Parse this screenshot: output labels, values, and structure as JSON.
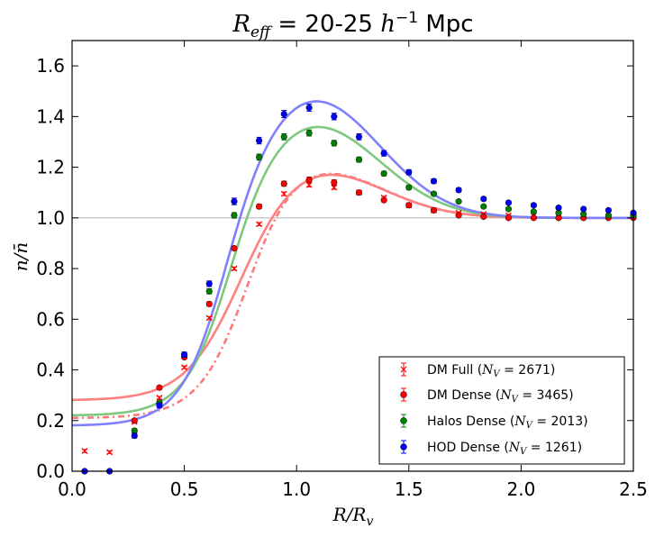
{
  "chart_data": {
    "type": "scatter",
    "title": "R_eff = 20-25 h^-1 Mpc",
    "title_parts": {
      "sym": "R",
      "sub": "eff",
      "mid": " = 20-25 ",
      "h": "h",
      "sup": "−1",
      "unit": " Mpc"
    },
    "xlabel": "R/R_v",
    "xlabel_parts": {
      "a": "R/R",
      "sub": "v"
    },
    "ylabel": "n/n̄",
    "xlim": [
      0.0,
      2.5
    ],
    "ylim": [
      0.0,
      1.7
    ],
    "xticks": [
      0.0,
      0.5,
      1.0,
      1.5,
      2.0,
      2.5
    ],
    "xtick_labels": [
      "0.0",
      "0.5",
      "1.0",
      "1.5",
      "2.0",
      "2.5"
    ],
    "yticks": [
      0.0,
      0.2,
      0.4,
      0.6,
      0.8,
      1.0,
      1.2,
      1.4,
      1.6
    ],
    "ytick_labels": [
      "0.0",
      "0.2",
      "0.4",
      "0.6",
      "0.8",
      "1.0",
      "1.2",
      "1.4",
      "1.6"
    ],
    "reference_line": 1.0,
    "legend_position": "lower-right",
    "series": [
      {
        "name": "DM Full (N_V = 2671)",
        "legend_parts": {
          "pre": "DM Full (",
          "n": "N",
          "sub": "V",
          "post": " = 2671)"
        },
        "color": "#ff0000",
        "marker": "x",
        "x": [
          0.056,
          0.167,
          0.278,
          0.389,
          0.5,
          0.611,
          0.722,
          0.833,
          0.944,
          1.056,
          1.167,
          1.278,
          1.389,
          1.5,
          1.611,
          1.722,
          1.833,
          1.944,
          2.056,
          2.167,
          2.278,
          2.389,
          2.5
        ],
        "y": [
          0.08,
          0.075,
          0.195,
          0.29,
          0.41,
          0.605,
          0.8,
          0.975,
          1.095,
          1.13,
          1.12,
          1.1,
          1.08,
          1.05,
          1.03,
          1.02,
          1.015,
          1.01,
          1.01,
          1.005,
          1.005,
          1.005,
          1.005
        ],
        "err": [
          0.006,
          0.005,
          0.005,
          0.005,
          0.005,
          0.005,
          0.006,
          0.006,
          0.007,
          0.008,
          0.007,
          0.006,
          0.005,
          0.005,
          0.005,
          0.004,
          0.004,
          0.004,
          0.004,
          0.004,
          0.004,
          0.004,
          0.004
        ],
        "fit_color": "#ff7777",
        "fit_style": "dashdot",
        "fit": {
          "c": 0.78,
          "k": 10.0,
          "base": 0.21,
          "amp": 0.2,
          "mu": 1.07,
          "sig": 0.3
        }
      },
      {
        "name": "DM Dense (N_V = 3465)",
        "legend_parts": {
          "pre": "DM Dense (",
          "n": "N",
          "sub": "V",
          "post": " = 3465)"
        },
        "color": "#ff0000",
        "marker": "o",
        "x": [
          0.056,
          0.167,
          0.278,
          0.389,
          0.5,
          0.611,
          0.722,
          0.833,
          0.944,
          1.056,
          1.167,
          1.278,
          1.389,
          1.5,
          1.611,
          1.722,
          1.833,
          1.944,
          2.056,
          2.167,
          2.278,
          2.389,
          2.5
        ],
        "y": [
          0.0,
          0.0,
          0.2,
          0.33,
          0.45,
          0.66,
          0.88,
          1.045,
          1.135,
          1.15,
          1.14,
          1.1,
          1.07,
          1.05,
          1.03,
          1.01,
          1.005,
          1.0,
          1.0,
          1.0,
          1.0,
          1.0,
          1.0
        ],
        "err": [
          0.004,
          0.004,
          0.007,
          0.007,
          0.007,
          0.008,
          0.008,
          0.009,
          0.01,
          0.011,
          0.01,
          0.008,
          0.007,
          0.006,
          0.005,
          0.005,
          0.005,
          0.005,
          0.005,
          0.005,
          0.004,
          0.004,
          0.004
        ],
        "fit_color": "#ff8080",
        "fit_style": "solid",
        "fit": {
          "c": 0.75,
          "k": 8.5,
          "base": 0.28,
          "amp": 0.2,
          "mu": 1.07,
          "sig": 0.3
        }
      },
      {
        "name": "Halos Dense (N_V = 2013)",
        "legend_parts": {
          "pre": "Halos Dense (",
          "n": "N",
          "sub": "V",
          "post": " = 2013)"
        },
        "color": "#008000",
        "marker": "o",
        "x": [
          0.056,
          0.167,
          0.278,
          0.389,
          0.5,
          0.611,
          0.722,
          0.833,
          0.944,
          1.056,
          1.167,
          1.278,
          1.389,
          1.5,
          1.611,
          1.722,
          1.833,
          1.944,
          2.056,
          2.167,
          2.278,
          2.389,
          2.5
        ],
        "y": [
          0.0,
          0.0,
          0.16,
          0.27,
          0.46,
          0.71,
          1.01,
          1.24,
          1.32,
          1.335,
          1.295,
          1.23,
          1.175,
          1.12,
          1.095,
          1.065,
          1.045,
          1.035,
          1.025,
          1.02,
          1.015,
          1.01,
          1.01
        ],
        "err": [
          0.004,
          0.004,
          0.008,
          0.008,
          0.009,
          0.01,
          0.011,
          0.012,
          0.012,
          0.012,
          0.011,
          0.01,
          0.009,
          0.008,
          0.007,
          0.006,
          0.006,
          0.006,
          0.005,
          0.005,
          0.005,
          0.005,
          0.005
        ],
        "fit_color": "#7fc97f",
        "fit_style": "solid",
        "fit": {
          "c": 0.7,
          "k": 11.0,
          "base": 0.22,
          "amp": 0.37,
          "mu": 1.07,
          "sig": 0.3
        }
      },
      {
        "name": "HOD Dense (N_V = 1261)",
        "legend_parts": {
          "pre": "HOD Dense (",
          "n": "N",
          "sub": "V",
          "post": " = 1261)"
        },
        "color": "#0000ff",
        "marker": "o",
        "x": [
          0.056,
          0.167,
          0.278,
          0.389,
          0.5,
          0.611,
          0.722,
          0.833,
          0.944,
          1.056,
          1.167,
          1.278,
          1.389,
          1.5,
          1.611,
          1.722,
          1.833,
          1.944,
          2.056,
          2.167,
          2.278,
          2.389,
          2.5
        ],
        "y": [
          0.0,
          0.0,
          0.14,
          0.26,
          0.46,
          0.74,
          1.065,
          1.305,
          1.41,
          1.435,
          1.4,
          1.32,
          1.255,
          1.18,
          1.145,
          1.11,
          1.075,
          1.06,
          1.05,
          1.04,
          1.035,
          1.03,
          1.02
        ],
        "err": [
          0.004,
          0.004,
          0.009,
          0.009,
          0.01,
          0.011,
          0.013,
          0.013,
          0.014,
          0.014,
          0.013,
          0.012,
          0.011,
          0.01,
          0.009,
          0.008,
          0.008,
          0.007,
          0.007,
          0.007,
          0.006,
          0.006,
          0.006
        ],
        "fit_color": "#8080ff",
        "fit_style": "solid",
        "fit": {
          "c": 0.68,
          "k": 11.0,
          "base": 0.18,
          "amp": 0.47,
          "mu": 1.07,
          "sig": 0.3
        }
      }
    ]
  }
}
